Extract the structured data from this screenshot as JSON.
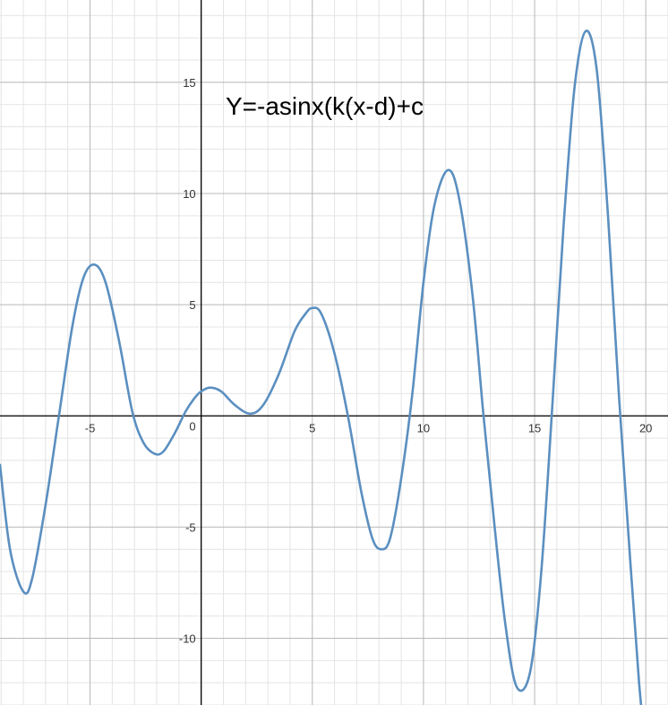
{
  "chart_data": {
    "type": "line",
    "annotation": "Y=-asinx(k(x-d)+c",
    "xlim": [
      -9.05,
      21.0
    ],
    "ylim": [
      -13.0,
      18.7
    ],
    "grid": true,
    "minor_grid_step": 1,
    "major_grid_step": 5,
    "x_tick_labels": [
      {
        "value": -5,
        "label": "-5"
      },
      {
        "value": 5,
        "label": "5"
      },
      {
        "value": 10,
        "label": "10"
      },
      {
        "value": 15,
        "label": "15"
      },
      {
        "value": 20,
        "label": "20"
      }
    ],
    "origin_label": "0",
    "y_tick_labels": [
      {
        "value": 15,
        "label": "15"
      },
      {
        "value": 10,
        "label": "10"
      },
      {
        "value": 5,
        "label": "5"
      },
      {
        "value": -5,
        "label": "-5"
      },
      {
        "value": -10,
        "label": "-10"
      }
    ],
    "series": [
      {
        "color": "#5b8fc0",
        "points": [
          [
            -9.05,
            -2.2
          ],
          [
            -8.6,
            -6.0
          ],
          [
            -8.0,
            -7.9
          ],
          [
            -7.6,
            -7.3
          ],
          [
            -7.0,
            -4.0
          ],
          [
            -6.4,
            0.0
          ],
          [
            -5.8,
            4.0
          ],
          [
            -5.3,
            6.2
          ],
          [
            -4.8,
            6.8
          ],
          [
            -4.3,
            6.0
          ],
          [
            -3.7,
            3.4
          ],
          [
            -3.1,
            0.2
          ],
          [
            -2.6,
            -1.2
          ],
          [
            -2.1,
            -1.7
          ],
          [
            -1.7,
            -1.6
          ],
          [
            -1.2,
            -0.8
          ],
          [
            -0.7,
            0.2
          ],
          [
            -0.3,
            0.8
          ],
          [
            0.0,
            1.1
          ],
          [
            0.4,
            1.27
          ],
          [
            0.9,
            1.1
          ],
          [
            1.5,
            0.5
          ],
          [
            2.2,
            0.1
          ],
          [
            2.8,
            0.5
          ],
          [
            3.5,
            1.9
          ],
          [
            4.2,
            3.8
          ],
          [
            4.7,
            4.6
          ],
          [
            5.0,
            4.85
          ],
          [
            5.4,
            4.6
          ],
          [
            6.0,
            2.8
          ],
          [
            6.6,
            0.0
          ],
          [
            7.2,
            -3.4
          ],
          [
            7.7,
            -5.5
          ],
          [
            8.1,
            -6.0
          ],
          [
            8.5,
            -5.5
          ],
          [
            9.0,
            -2.8
          ],
          [
            9.5,
            1.0
          ],
          [
            10.0,
            6.0
          ],
          [
            10.5,
            9.5
          ],
          [
            11.1,
            11.05
          ],
          [
            11.6,
            9.8
          ],
          [
            12.2,
            5.5
          ],
          [
            12.7,
            0.0
          ],
          [
            13.2,
            -5.0
          ],
          [
            13.7,
            -9.5
          ],
          [
            14.2,
            -12.2
          ],
          [
            14.8,
            -11.5
          ],
          [
            15.3,
            -7.0
          ],
          [
            15.8,
            0.5
          ],
          [
            16.3,
            8.5
          ],
          [
            16.8,
            14.8
          ],
          [
            17.3,
            17.3
          ],
          [
            17.8,
            15.5
          ],
          [
            18.3,
            9.0
          ],
          [
            18.8,
            0.8
          ],
          [
            19.3,
            -6.5
          ],
          [
            19.7,
            -12.0
          ],
          [
            19.9,
            -14.0
          ]
        ]
      }
    ]
  }
}
